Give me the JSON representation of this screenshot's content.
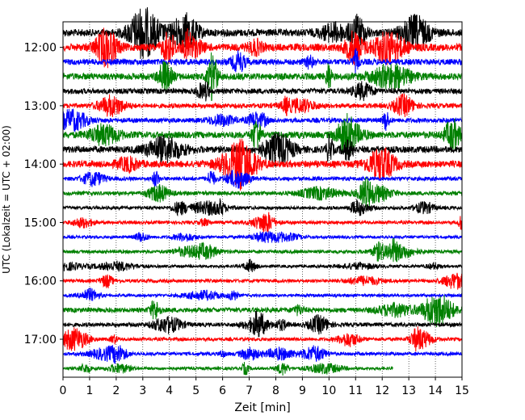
{
  "chart_data": {
    "type": "line",
    "title": "",
    "xlabel": "Zeit  [min]",
    "ylabel": "UTC (Lokalzeit = UTC + 02:00)",
    "xlim": [
      0,
      15
    ],
    "x_ticks": [
      "0",
      "1",
      "2",
      "3",
      "4",
      "5",
      "6",
      "7",
      "8",
      "9",
      "10",
      "11",
      "12",
      "13",
      "14",
      "15"
    ],
    "y_ticks": [
      "12:00",
      "13:00",
      "14:00",
      "15:00",
      "16:00",
      "17:00"
    ],
    "trace_interval_min": 15,
    "start_time": "11:45",
    "traces_per_hour": 4,
    "grid": "vertical dotted at each minute",
    "series_colors": [
      "#000000",
      "#ff0000",
      "#0000ff",
      "#008000"
    ],
    "traces": [
      {
        "start": "11:45",
        "amplitude": 0.55,
        "end_min": 15
      },
      {
        "start": "12:00",
        "amplitude": 0.55,
        "end_min": 15
      },
      {
        "start": "12:15",
        "amplitude": 0.45,
        "end_min": 15
      },
      {
        "start": "12:30",
        "amplitude": 0.5,
        "end_min": 15
      },
      {
        "start": "12:45",
        "amplitude": 0.4,
        "end_min": 15
      },
      {
        "start": "13:00",
        "amplitude": 0.35,
        "end_min": 15
      },
      {
        "start": "13:15",
        "amplitude": 0.35,
        "end_min": 15
      },
      {
        "start": "13:30",
        "amplitude": 0.5,
        "end_min": 15
      },
      {
        "start": "13:45",
        "amplitude": 0.5,
        "end_min": 15
      },
      {
        "start": "14:00",
        "amplitude": 0.5,
        "end_min": 15
      },
      {
        "start": "14:15",
        "amplitude": 0.3,
        "end_min": 15
      },
      {
        "start": "14:30",
        "amplitude": 0.3,
        "end_min": 15
      },
      {
        "start": "14:45",
        "amplitude": 0.25,
        "end_min": 15
      },
      {
        "start": "15:00",
        "amplitude": 0.25,
        "end_min": 15
      },
      {
        "start": "15:15",
        "amplitude": 0.22,
        "end_min": 15
      },
      {
        "start": "15:30",
        "amplitude": 0.25,
        "end_min": 15
      },
      {
        "start": "15:45",
        "amplitude": 0.22,
        "end_min": 15
      },
      {
        "start": "16:00",
        "amplitude": 0.25,
        "end_min": 15
      },
      {
        "start": "16:15",
        "amplitude": 0.22,
        "end_min": 15
      },
      {
        "start": "16:30",
        "amplitude": 0.35,
        "end_min": 15
      },
      {
        "start": "16:45",
        "amplitude": 0.3,
        "end_min": 15
      },
      {
        "start": "17:00",
        "amplitude": 0.25,
        "end_min": 15
      },
      {
        "start": "17:15",
        "amplitude": 0.25,
        "end_min": 15
      },
      {
        "start": "17:30",
        "amplitude": 0.22,
        "end_min": 12.4
      }
    ]
  }
}
